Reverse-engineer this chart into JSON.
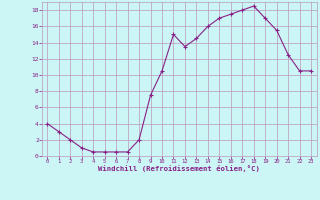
{
  "x": [
    0,
    1,
    2,
    3,
    4,
    5,
    6,
    7,
    8,
    9,
    10,
    11,
    12,
    13,
    14,
    15,
    16,
    17,
    18,
    19,
    20,
    21,
    22,
    23
  ],
  "y": [
    4,
    3,
    2,
    1,
    0.5,
    0.5,
    0.5,
    0.5,
    2,
    7.5,
    10.5,
    15,
    13.5,
    14.5,
    16,
    17,
    17.5,
    18,
    18.5,
    17,
    15.5,
    12.5,
    10.5,
    10.5
  ],
  "line_color": "#882288",
  "marker": "+",
  "bg_color": "#ccf5f5",
  "grid_color": "#bb99bb",
  "xlabel": "Windchill (Refroidissement éolien,°C)",
  "xlabel_color": "#882288",
  "tick_color": "#882288",
  "xlim": [
    -0.5,
    23.5
  ],
  "ylim": [
    0,
    19
  ],
  "yticks": [
    0,
    2,
    4,
    6,
    8,
    10,
    12,
    14,
    16,
    18
  ],
  "xticks": [
    0,
    1,
    2,
    3,
    4,
    5,
    6,
    7,
    8,
    9,
    10,
    11,
    12,
    13,
    14,
    15,
    16,
    17,
    18,
    19,
    20,
    21,
    22,
    23
  ]
}
